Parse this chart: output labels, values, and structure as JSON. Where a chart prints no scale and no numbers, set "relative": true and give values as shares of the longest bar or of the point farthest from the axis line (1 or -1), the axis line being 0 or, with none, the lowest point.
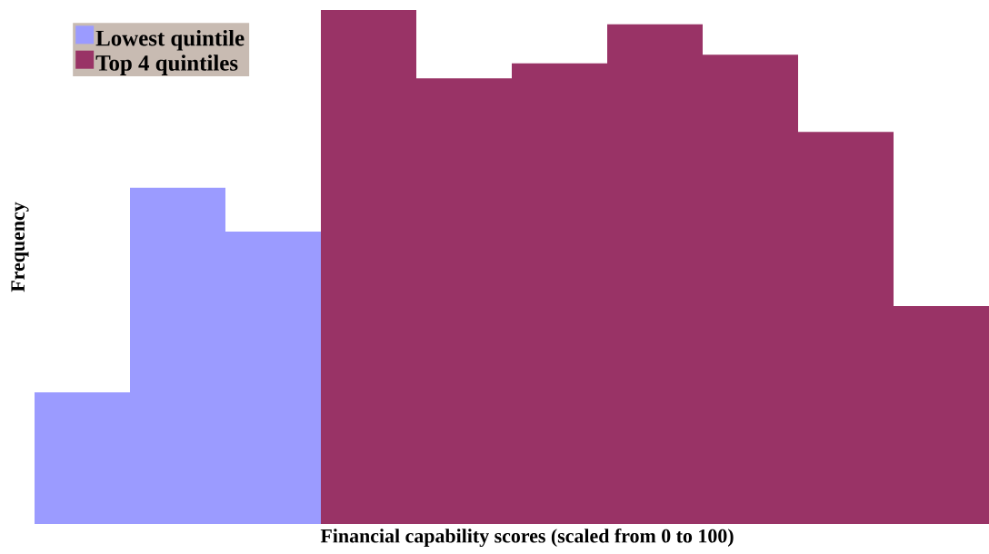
{
  "chart_data": {
    "type": "bar",
    "relative": true,
    "xlabel": "Financial capability scores (scaled from 0 to 100)",
    "ylabel": "Frequency",
    "categories": [
      null,
      null,
      null,
      null,
      null,
      null,
      null,
      null,
      null,
      null
    ],
    "series": [
      {
        "name": "Lowest quintile",
        "color": "#9b9bff",
        "values": [
          0.256,
          0.654,
          0.569,
          0,
          0,
          0,
          0,
          0,
          0,
          0
        ]
      },
      {
        "name": "Top 4 quintiles",
        "color": "#993366",
        "values": [
          0,
          0,
          0,
          1,
          0.867,
          0.896,
          0.972,
          0.913,
          0.763,
          0.424
        ]
      }
    ],
    "stacked": true,
    "legend": "top left"
  }
}
